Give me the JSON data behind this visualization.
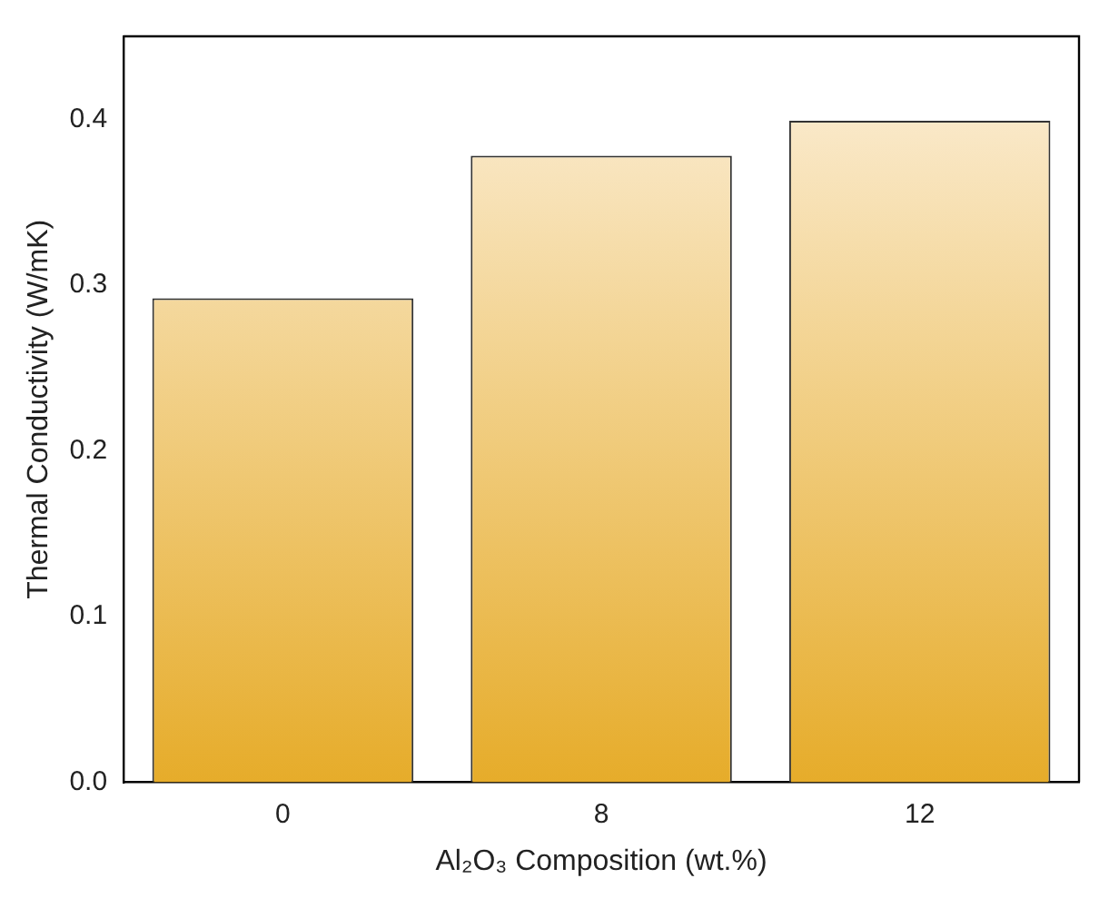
{
  "chart_data": {
    "type": "bar",
    "xlabel": "Al₂O₃ Composition (wt.%)",
    "ylabel": "Thermal Conductivity (W/mK)",
    "categories": [
      "0",
      "8",
      "12"
    ],
    "values": [
      0.292,
      0.378,
      0.399
    ],
    "color": "#e6ac2a",
    "ylim": [
      0,
      0.45
    ],
    "yticks": [
      {
        "value": 0,
        "label": "0.0"
      },
      0.1,
      0.2,
      0.3,
      0.4
    ],
    "grid": false,
    "legend": false
  }
}
